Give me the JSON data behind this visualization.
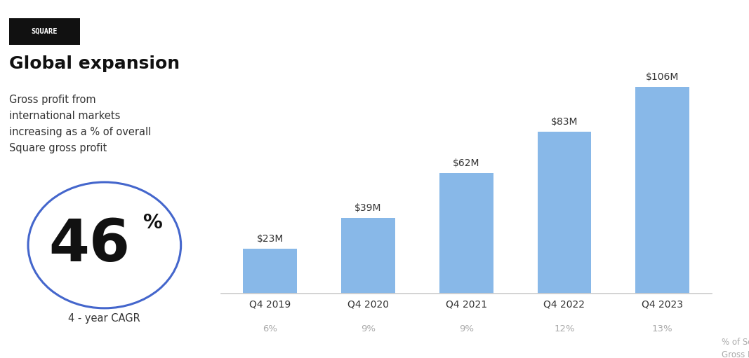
{
  "title": "Global expansion",
  "subtitle": "Gross profit from\ninternational markets\nincreasing as a % of overall\nSquare gross profit",
  "badge_text": "SQUARE",
  "cagr_value": "46",
  "cagr_label": "4 - year CAGR",
  "categories": [
    "Q4 2019",
    "Q4 2020",
    "Q4 2021",
    "Q4 2022",
    "Q4 2023"
  ],
  "values": [
    23,
    39,
    62,
    83,
    106
  ],
  "value_labels": [
    "$23M",
    "$39M",
    "$62M",
    "$83M",
    "$106M"
  ],
  "pct_labels": [
    "6%",
    "9%",
    "9%",
    "12%",
    "13%"
  ],
  "bar_color": "#88b8e8",
  "background_color": "#ffffff",
  "axis_label_right": "% of Square\nGross Profit",
  "title_fontsize": 18,
  "subtitle_fontsize": 10.5,
  "value_label_fontsize": 10,
  "pct_label_fontsize": 9.5,
  "circle_color": "#4466cc",
  "ylim": [
    0,
    125
  ]
}
